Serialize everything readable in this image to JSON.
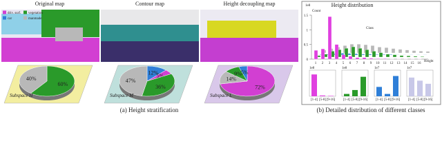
{
  "panel_a": {
    "caption": "(a) Height stratification",
    "maps": [
      {
        "title": "Original map"
      },
      {
        "title": "Contour map"
      },
      {
        "title": "Height decoupling map"
      }
    ],
    "legend": [
      {
        "name": "driv. surf.",
        "color": "#d23fd2"
      },
      {
        "name": "vegetation",
        "color": "#2a9a2a"
      },
      {
        "name": "car",
        "color": "#2f7fd8"
      },
      {
        "name": "manmade",
        "color": "#b8b8b8"
      }
    ],
    "pies": [
      {
        "label": "Subspace H",
        "values": [
          60,
          40
        ],
        "value_labels": [
          "60%",
          "40%"
        ],
        "colors": [
          "#2a9a2a",
          "#b8b8b8"
        ],
        "base": "#f3eea0"
      },
      {
        "label": "Subspace M",
        "values": [
          12,
          5,
          36,
          47
        ],
        "value_labels": [
          "12%",
          "5%",
          "36%",
          "47%"
        ],
        "colors": [
          "#2f7fd8",
          "#d23fd2",
          "#2a9a2a",
          "#b8b8b8"
        ],
        "base": "#bfe0dc"
      },
      {
        "label": "Subspace L",
        "values": [
          72,
          14,
          9,
          5
        ],
        "value_labels": [
          "72%",
          "14%",
          "9%",
          "5%"
        ],
        "colors": [
          "#d23fd2",
          "#b8b8b8",
          "#2a9a2a",
          "#2f7fd8"
        ],
        "base": "#d9c8ea"
      }
    ]
  },
  "panel_b": {
    "caption": "(b) Detailed distribution of different classes",
    "chart": {
      "type": "bar3d",
      "title": "Height distribution",
      "scale_label": "1e8",
      "y_label": "Count",
      "z_label": "Class",
      "x_label": "Height",
      "categories": [
        "1",
        "2",
        "3",
        "4",
        "5",
        "6",
        "7",
        "8",
        "9",
        "10",
        "11",
        "12",
        "13",
        "14",
        "15",
        "16"
      ],
      "ylim": [
        0,
        1.5
      ],
      "yticks": [
        0,
        0.5,
        1,
        1.5
      ],
      "series": [
        {
          "color": "#b8b8b8",
          "values": [
            0.1,
            0.15,
            0.2,
            0.25,
            0.3,
            0.3,
            0.28,
            0.25,
            0.2,
            0.18,
            0.15,
            0.12,
            0.1,
            0.08,
            0.06,
            0.05
          ]
        },
        {
          "color": "#2f7fd8",
          "values": [
            0.02,
            0.03,
            0.05,
            0.06,
            0.05,
            0.04,
            0.03,
            0.03,
            0.02,
            0.02,
            0.02,
            0.01,
            0.01,
            0.01,
            0.01,
            0.01
          ]
        },
        {
          "color": "#2a9a2a",
          "values": [
            0.05,
            0.1,
            0.2,
            0.25,
            0.3,
            0.35,
            0.3,
            0.25,
            0.2,
            0.15,
            0.1,
            0.08,
            0.05,
            0.04,
            0.03,
            0.02
          ]
        },
        {
          "color": "#e040e0",
          "values": [
            0.3,
            0.35,
            1.45,
            0.5,
            0.15,
            0.1,
            0.05,
            0.05,
            0.03,
            0.02,
            0.02,
            0.01,
            0.01,
            0.01,
            0.01,
            0.01
          ]
        }
      ]
    },
    "mini": [
      {
        "type": "bar",
        "scale_label": "1e8",
        "color": "#e040e0",
        "categories": [
          "[1-4]",
          "[5-8]",
          "[9-16]"
        ],
        "values": [
          2.8,
          0.1,
          0.05
        ],
        "ylim": [
          0,
          3
        ]
      },
      {
        "type": "bar",
        "scale_label": "1e8",
        "color": "#2a9a2a",
        "categories": [
          "[1-4]",
          "[5-8]",
          "[9-16]"
        ],
        "values": [
          0.3,
          0.8,
          2.5
        ],
        "ylim": [
          0,
          3
        ]
      },
      {
        "type": "bar",
        "scale_label": "1e7",
        "color": "#2f7fd8",
        "categories": [
          "[1-4]",
          "[5-8]",
          "[9-16]"
        ],
        "values": [
          1.2,
          0.3,
          2.6
        ],
        "ylim": [
          0,
          3
        ]
      },
      {
        "type": "bar",
        "scale_label": "1e7",
        "color": "#c8c8e8",
        "categories": [
          "[1-4]",
          "[5-8]",
          "[9-16]"
        ],
        "values": [
          2.4,
          2.0,
          1.6
        ],
        "ylim": [
          0,
          3
        ]
      }
    ]
  }
}
